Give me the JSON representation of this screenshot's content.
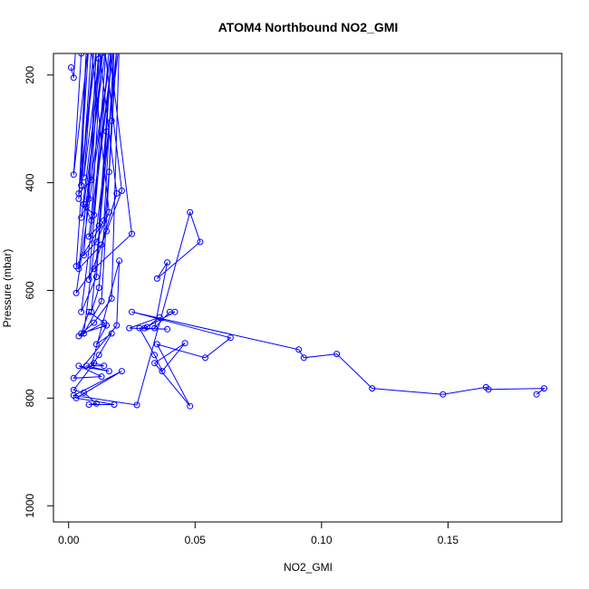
{
  "chart_data": {
    "type": "line",
    "title": "ATOM4 Northbound NO2_GMI",
    "xlabel": "NO2_GMI",
    "ylabel": "Pressure (mbar)",
    "xlim": [
      -0.006,
      0.195
    ],
    "ylim": [
      1030,
      160
    ],
    "y_reversed": true,
    "xticks": [
      0.0,
      0.05,
      0.1,
      0.15
    ],
    "xtick_labels": [
      "0.00",
      "0.05",
      "0.10",
      "0.15"
    ],
    "yticks": [
      200,
      400,
      600,
      800,
      1000
    ],
    "ytick_labels": [
      "200",
      "400",
      "600",
      "800",
      "1000"
    ],
    "grid": false,
    "legend": "none",
    "series": [
      {
        "color": "#0000ff",
        "marker": "open-circle",
        "points": [
          [
            0.001,
            186
          ],
          [
            0.002,
            205
          ],
          [
            0.003,
            140
          ],
          [
            0.004,
            140
          ],
          [
            0.005,
            160
          ],
          [
            0.002,
            385
          ],
          [
            0.008,
            140
          ],
          [
            0.004,
            430
          ],
          [
            0.007,
            150
          ],
          [
            0.005,
            405
          ],
          [
            0.01,
            150
          ],
          [
            0.006,
            390
          ],
          [
            0.012,
            170
          ],
          [
            0.009,
            395
          ],
          [
            0.004,
            420
          ],
          [
            0.011,
            150
          ],
          [
            0.008,
            430
          ],
          [
            0.005,
            465
          ],
          [
            0.013,
            160
          ],
          [
            0.009,
            470
          ],
          [
            0.006,
            440
          ],
          [
            0.015,
            140
          ],
          [
            0.01,
            460
          ],
          [
            0.007,
            445
          ],
          [
            0.017,
            150
          ],
          [
            0.012,
            480
          ],
          [
            0.008,
            500
          ],
          [
            0.018,
            140
          ],
          [
            0.014,
            470
          ],
          [
            0.003,
            555
          ],
          [
            0.009,
            150
          ],
          [
            0.016,
            455
          ],
          [
            0.011,
            510
          ],
          [
            0.006,
            535
          ],
          [
            0.012,
            150
          ],
          [
            0.019,
            420
          ],
          [
            0.013,
            515
          ],
          [
            0.004,
            560
          ],
          [
            0.014,
            140
          ],
          [
            0.021,
            415
          ],
          [
            0.015,
            490
          ],
          [
            0.008,
            580
          ],
          [
            0.016,
            150
          ],
          [
            0.025,
            495
          ],
          [
            0.01,
            560
          ],
          [
            0.003,
            605
          ],
          [
            0.017,
            150
          ],
          [
            0.015,
            305
          ],
          [
            0.011,
            575
          ],
          [
            0.005,
            640
          ],
          [
            0.018,
            140
          ],
          [
            0.017,
            285
          ],
          [
            0.016,
            380
          ],
          [
            0.012,
            595
          ],
          [
            0.009,
            640
          ],
          [
            0.019,
            150
          ],
          [
            0.013,
            620
          ],
          [
            0.006,
            680
          ],
          [
            0.02,
            140
          ],
          [
            0.017,
            615
          ],
          [
            0.01,
            660
          ],
          [
            0.004,
            685
          ],
          [
            0.014,
            660
          ],
          [
            0.008,
            640
          ],
          [
            0.005,
            680
          ],
          [
            0.015,
            665
          ],
          [
            0.011,
            700
          ],
          [
            0.017,
            680
          ],
          [
            0.012,
            720
          ],
          [
            0.009,
            740
          ],
          [
            0.02,
            545
          ],
          [
            0.019,
            665
          ],
          [
            0.002,
            763
          ],
          [
            0.013,
            760
          ],
          [
            0.004,
            740
          ],
          [
            0.016,
            750
          ],
          [
            0.007,
            740
          ],
          [
            0.014,
            740
          ],
          [
            0.01,
            735
          ],
          [
            0.002,
            785
          ],
          [
            0.006,
            790
          ],
          [
            0.011,
            810
          ],
          [
            0.008,
            812
          ],
          [
            0.018,
            812
          ],
          [
            0.003,
            800
          ],
          [
            0.021,
            750
          ],
          [
            0.002,
            795
          ],
          [
            0.027,
            813
          ],
          [
            0.048,
            455
          ],
          [
            0.052,
            510
          ],
          [
            0.035,
            578
          ],
          [
            0.039,
            548
          ],
          [
            0.034,
            670
          ],
          [
            0.04,
            640
          ],
          [
            0.042,
            640
          ],
          [
            0.03,
            670
          ],
          [
            0.039,
            672
          ],
          [
            0.024,
            670
          ],
          [
            0.036,
            650
          ],
          [
            0.031,
            668
          ],
          [
            0.028,
            670
          ],
          [
            0.034,
            720
          ],
          [
            0.037,
            750
          ],
          [
            0.046,
            698
          ],
          [
            0.034,
            735
          ],
          [
            0.048,
            815
          ],
          [
            0.035,
            700
          ],
          [
            0.054,
            725
          ],
          [
            0.064,
            688
          ],
          [
            0.025,
            640
          ],
          [
            0.091,
            710
          ],
          [
            0.093,
            725
          ],
          [
            0.106,
            718
          ],
          [
            0.12,
            782
          ],
          [
            0.148,
            793
          ],
          [
            0.165,
            780
          ],
          [
            0.166,
            784
          ],
          [
            0.188,
            782
          ],
          [
            0.185,
            793
          ]
        ]
      }
    ]
  }
}
